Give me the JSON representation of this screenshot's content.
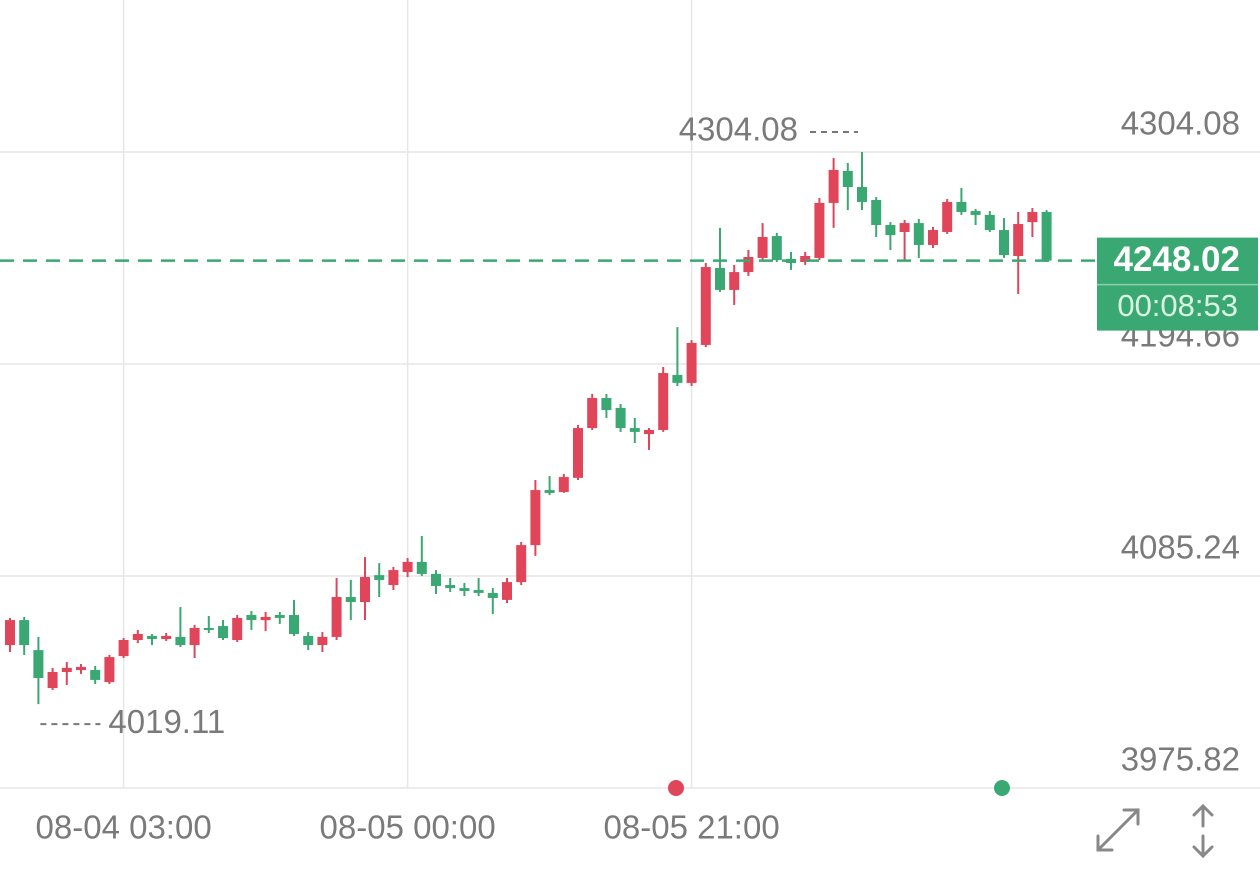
{
  "chart_data": {
    "type": "candlestick",
    "categories": [
      null,
      null,
      null,
      null,
      null,
      null,
      null,
      null,
      "08-04 03:00",
      null,
      null,
      null,
      null,
      null,
      null,
      null,
      null,
      null,
      null,
      null,
      null,
      null,
      null,
      null,
      null,
      null,
      null,
      null,
      "08-05 00:00",
      null,
      null,
      null,
      null,
      null,
      null,
      null,
      null,
      null,
      null,
      null,
      null,
      null,
      null,
      null,
      null,
      null,
      null,
      null,
      "08-05 21:00",
      null,
      null,
      null,
      null,
      null,
      null,
      null,
      null,
      null,
      null,
      null,
      null,
      null,
      null,
      null,
      null,
      null,
      null,
      null,
      null,
      null,
      null,
      null,
      null,
      null
    ],
    "open": [
      4049.6,
      4062.5,
      4047.0,
      4027.4,
      4035.7,
      4036.7,
      4036.7,
      4030.5,
      4043.9,
      4052.2,
      4054.3,
      4052.7,
      4053.8,
      4049.6,
      4058.4,
      4059.4,
      4052.2,
      4065.1,
      4062.5,
      4065.1,
      4065.1,
      4054.3,
      4049.6,
      4053.8,
      4074.4,
      4071.8,
      4085.7,
      4080.6,
      4087.3,
      4092.5,
      4086.3,
      4080.6,
      4079.0,
      4078.0,
      4076.5,
      4072.9,
      4082.1,
      4101.2,
      4129.6,
      4128.6,
      4135.9,
      4161.6,
      4177.1,
      4172.0,
      4161.6,
      4158.5,
      4160.6,
      4189.0,
      4184.9,
      4204.5,
      4244.2,
      4232.9,
      4242.1,
      4249.4,
      4260.7,
      4248.9,
      4247.3,
      4249.4,
      4277.8,
      4294.3,
      4286.0,
      4279.3,
      4266.4,
      4262.8,
      4267.4,
      4256.1,
      4262.8,
      4278.3,
      4273.6,
      4271.6,
      4263.8,
      4250.4,
      4267.9,
      4273.1
    ],
    "high": [
      4063.6,
      4064.1,
      4053.8,
      4037.8,
      4040.8,
      4039.8,
      4038.8,
      4044.5,
      4053.2,
      4057.4,
      4055.3,
      4055.8,
      4069.2,
      4060.0,
      4064.6,
      4062.5,
      4065.1,
      4067.2,
      4066.7,
      4066.7,
      4072.9,
      4056.3,
      4056.3,
      4084.2,
      4083.2,
      4095.0,
      4091.9,
      4089.9,
      4094.5,
      4105.9,
      4088.3,
      4084.2,
      4081.6,
      4084.2,
      4079.0,
      4084.2,
      4102.8,
      4134.8,
      4136.8,
      4137.9,
      4163.2,
      4179.2,
      4179.2,
      4174.0,
      4166.8,
      4161.6,
      4193.1,
      4213.7,
      4207.0,
      4246.8,
      4264.9,
      4245.8,
      4253.5,
      4267.4,
      4262.3,
      4252.5,
      4252.5,
      4280.3,
      4301.0,
      4298.4,
      4304.08,
      4280.8,
      4267.9,
      4269.0,
      4269.5,
      4265.4,
      4279.8,
      4285.5,
      4274.7,
      4273.6,
      4270.0,
      4273.1,
      4275.2,
      4274.1
    ],
    "low": [
      4046.0,
      4044.5,
      4019.11,
      4026.4,
      4029.0,
      4034.7,
      4029.5,
      4029.5,
      4042.9,
      4050.6,
      4049.6,
      4051.7,
      4048.6,
      4042.9,
      4055.8,
      4052.2,
      4051.2,
      4057.4,
      4056.8,
      4060.5,
      4054.3,
      4047.0,
      4046.0,
      4052.2,
      4062.5,
      4062.5,
      4074.4,
      4078.0,
      4084.7,
      4085.2,
      4075.9,
      4077.0,
      4074.9,
      4074.9,
      4065.6,
      4071.3,
      4080.6,
      4095.6,
      4127.0,
      4128.1,
      4134.8,
      4160.6,
      4166.8,
      4159.6,
      4153.9,
      4150.3,
      4159.6,
      4183.3,
      4183.3,
      4203.4,
      4231.8,
      4225.1,
      4240.1,
      4248.3,
      4247.3,
      4243.2,
      4245.8,
      4248.3,
      4264.9,
      4274.1,
      4274.1,
      4260.2,
      4253.5,
      4248.3,
      4249.4,
      4254.5,
      4261.8,
      4271.6,
      4266.4,
      4262.8,
      4249.4,
      4230.8,
      4260.2,
      4247.3
    ],
    "close": [
      4062.5,
      4049.6,
      4032.6,
      4035.7,
      4037.8,
      4038.3,
      4031.6,
      4043.4,
      4052.2,
      4055.3,
      4052.7,
      4054.3,
      4049.6,
      4058.4,
      4057.4,
      4053.2,
      4063.6,
      4062.5,
      4064.1,
      4063.6,
      4055.3,
      4049.6,
      4053.8,
      4074.4,
      4071.8,
      4084.7,
      4083.2,
      4088.3,
      4092.5,
      4086.3,
      4080.1,
      4079.0,
      4077.5,
      4076.5,
      4073.9,
      4082.1,
      4101.2,
      4129.6,
      4128.1,
      4136.3,
      4161.6,
      4177.1,
      4170.9,
      4161.6,
      4159.6,
      4160.6,
      4190.0,
      4184.9,
      4205.5,
      4244.7,
      4232.9,
      4242.1,
      4249.9,
      4260.2,
      4248.3,
      4246.8,
      4250.4,
      4277.8,
      4294.8,
      4286.0,
      4278.3,
      4266.4,
      4261.2,
      4267.4,
      4256.1,
      4263.8,
      4278.3,
      4273.1,
      4271.6,
      4263.8,
      4250.9,
      4266.9,
      4273.1,
      4248.02
    ],
    "up_color": "#e0455a",
    "down_color": "#3aa872",
    "ylim": [
      3975.82,
      4382.53
    ],
    "yticks": [
      3975.82,
      4085.24,
      4194.66,
      4304.08
    ],
    "grid": true,
    "high_marker": 4304.08,
    "low_marker": 4019.11,
    "last_price": 4248.02,
    "countdown": "00:08:53"
  }
}
